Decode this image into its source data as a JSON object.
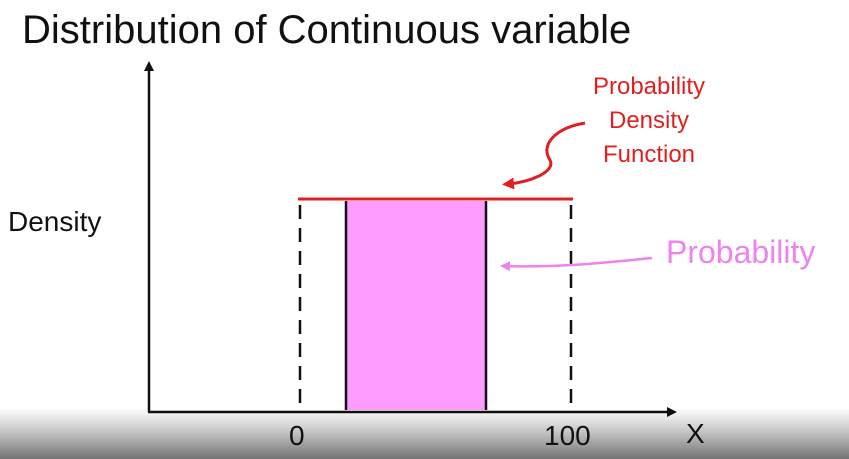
{
  "title": "Distribution of Continuous variable",
  "y_axis_label": "Density",
  "x_axis_label": "X",
  "ticks": {
    "low": "0",
    "high": "100"
  },
  "pdf_label": {
    "line1": "Probability",
    "line2": "Density",
    "line3": "Function"
  },
  "probability_label": "Probability",
  "colors": {
    "pdf_line": "#e02020",
    "probability_fill": "#ff9cff",
    "probability_label": "#ee82ee",
    "axis": "#111111"
  }
}
